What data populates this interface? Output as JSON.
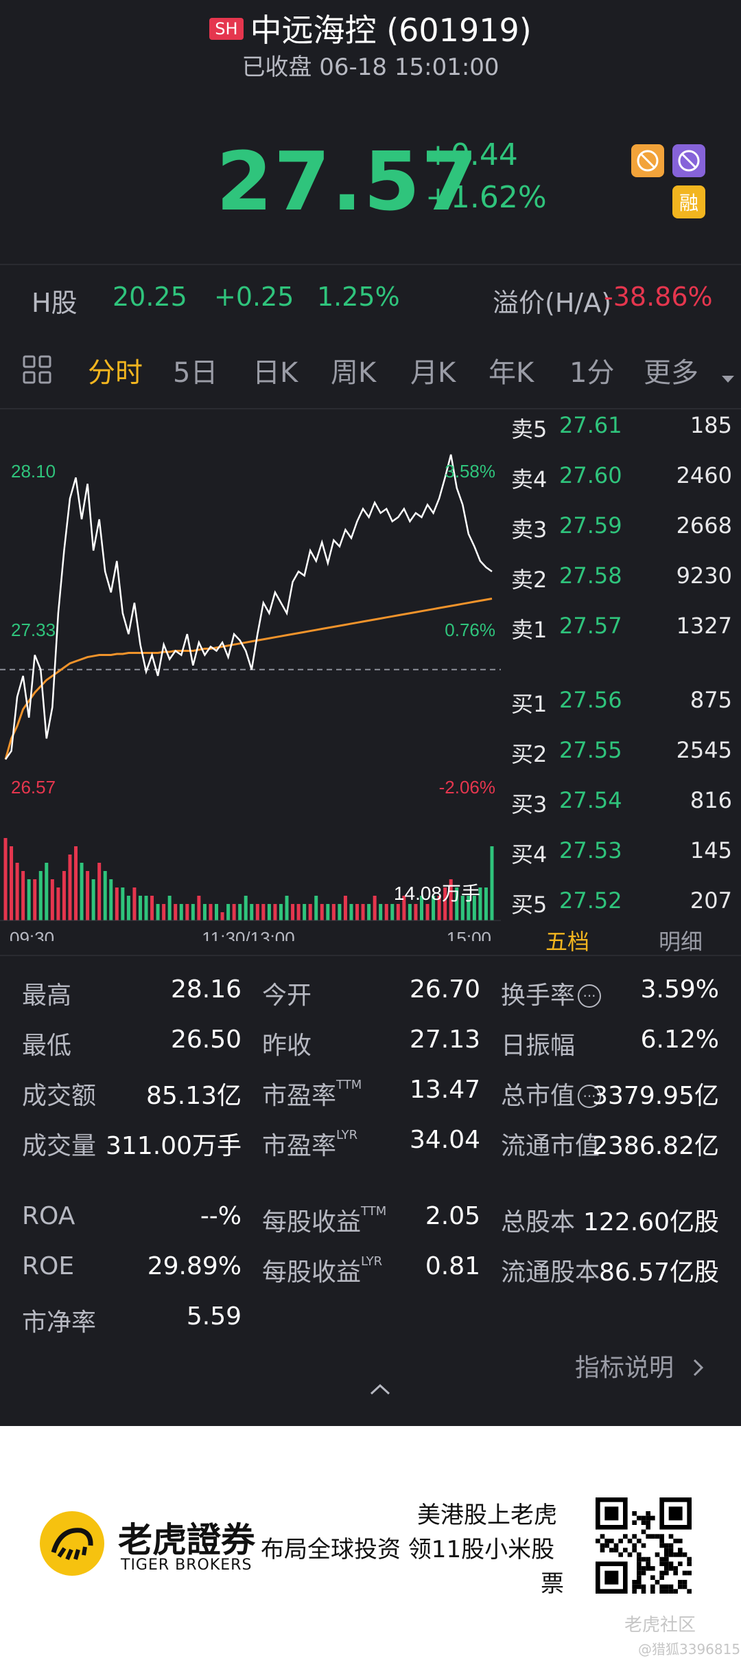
{
  "header": {
    "market_badge": "SH",
    "stock_name": "中远海控 (601919)",
    "status": "已收盘 06-18 15:01:00",
    "price": "27.57",
    "change": "+0.44",
    "change_pct": "+1.62%",
    "tags": [
      "no-short-icon",
      "no-buy-icon",
      "融"
    ]
  },
  "hshare": {
    "label": "H股",
    "price": "20.25",
    "change": "+0.25",
    "pct": "1.25%",
    "premium_label": "溢价(H/A)",
    "premium": "-38.86%"
  },
  "tabs": [
    "分时",
    "5日",
    "日K",
    "周K",
    "月K",
    "年K",
    "1分",
    "更多"
  ],
  "active_tab": "分时",
  "chart_data": {
    "type": "line",
    "price_axis": {
      "high": "28.10",
      "mid": "27.33",
      "low": "26.57"
    },
    "pct_axis": {
      "high": "3.58%",
      "mid": "0.76%",
      "low": "-2.06%"
    },
    "time_labels": [
      "09:30",
      "11:30/13:00",
      "15:00"
    ],
    "prev_close": 27.13,
    "volume_label": "14.08万手",
    "price_series": [
      26.7,
      26.74,
      27.0,
      27.1,
      26.9,
      27.2,
      27.13,
      26.8,
      26.95,
      27.4,
      27.7,
      27.95,
      28.05,
      27.85,
      28.02,
      27.7,
      27.85,
      27.6,
      27.5,
      27.65,
      27.4,
      27.3,
      27.45,
      27.25,
      27.12,
      27.2,
      27.1,
      27.25,
      27.18,
      27.22,
      27.2,
      27.3,
      27.15,
      27.26,
      27.2,
      27.24,
      27.22,
      27.26,
      27.19,
      27.3,
      27.27,
      27.22,
      27.13,
      27.3,
      27.45,
      27.4,
      27.5,
      27.45,
      27.4,
      27.55,
      27.6,
      27.58,
      27.7,
      27.65,
      27.74,
      27.64,
      27.75,
      27.72,
      27.8,
      27.76,
      27.84,
      27.9,
      27.86,
      27.93,
      27.88,
      27.9,
      27.84,
      27.86,
      27.9,
      27.84,
      27.88,
      27.86,
      27.92,
      27.88,
      27.95,
      28.05,
      28.16,
      28.0,
      27.92,
      27.78,
      27.72,
      27.65,
      27.62,
      27.6
    ],
    "avg_series": [
      26.7,
      26.8,
      26.86,
      26.94,
      26.98,
      27.02,
      27.05,
      27.08,
      27.1,
      27.12,
      27.14,
      27.16,
      27.17,
      27.18,
      27.19,
      27.195,
      27.2,
      27.2,
      27.2,
      27.205,
      27.205,
      27.21,
      27.21,
      27.21,
      27.21,
      27.21,
      27.21,
      27.215,
      27.215,
      27.22,
      27.22,
      27.22,
      27.22,
      27.225,
      27.23,
      27.23,
      27.235,
      27.24,
      27.245,
      27.25,
      27.255,
      27.26,
      27.265,
      27.27,
      27.275,
      27.28,
      27.285,
      27.29,
      27.295,
      27.3,
      27.305,
      27.31,
      27.315,
      27.32,
      27.325,
      27.33,
      27.335,
      27.34,
      27.345,
      27.35,
      27.355,
      27.36,
      27.365,
      27.37,
      27.375,
      27.38,
      27.385,
      27.39,
      27.395,
      27.4,
      27.405,
      27.41,
      27.415,
      27.42,
      27.425,
      27.43,
      27.435,
      27.44,
      27.445,
      27.45,
      27.455,
      27.46,
      27.465,
      27.47
    ],
    "volume_series": [
      10,
      9,
      7,
      6,
      5,
      5,
      6,
      7,
      5,
      4,
      6,
      8,
      9,
      7,
      6,
      5,
      7,
      6,
      5,
      4,
      4,
      3,
      4,
      3,
      3,
      3,
      2,
      2,
      3,
      2,
      2,
      2,
      2,
      3,
      2,
      2,
      2,
      1,
      2,
      2,
      2,
      3,
      2,
      2,
      2,
      2,
      2,
      2,
      3,
      2,
      2,
      2,
      2,
      3,
      2,
      2,
      2,
      2,
      3,
      2,
      2,
      2,
      2,
      3,
      2,
      2,
      2,
      2,
      3,
      2,
      2,
      3,
      2,
      3,
      3,
      4,
      5,
      4,
      3,
      3,
      3,
      4,
      4,
      9
    ]
  },
  "order_book": {
    "asks": [
      {
        "label": "卖5",
        "price": "27.61",
        "vol": "185"
      },
      {
        "label": "卖4",
        "price": "27.60",
        "vol": "2460"
      },
      {
        "label": "卖3",
        "price": "27.59",
        "vol": "2668"
      },
      {
        "label": "卖2",
        "price": "27.58",
        "vol": "9230"
      },
      {
        "label": "卖1",
        "price": "27.57",
        "vol": "1327"
      }
    ],
    "bids": [
      {
        "label": "买1",
        "price": "27.56",
        "vol": "875"
      },
      {
        "label": "买2",
        "price": "27.55",
        "vol": "2545"
      },
      {
        "label": "买3",
        "price": "27.54",
        "vol": "816"
      },
      {
        "label": "买4",
        "price": "27.53",
        "vol": "145"
      },
      {
        "label": "买5",
        "price": "27.52",
        "vol": "207"
      }
    ],
    "tab_five": "五档",
    "tab_detail": "明细"
  },
  "stats": {
    "col1": [
      {
        "k": "最高",
        "v": "28.16"
      },
      {
        "k": "最低",
        "v": "26.50"
      },
      {
        "k": "成交额",
        "v": "85.13亿"
      },
      {
        "k": "成交量",
        "v": "311.00万手"
      }
    ],
    "col2": [
      {
        "k": "今开",
        "v": "26.70"
      },
      {
        "k": "昨收",
        "v": "27.13"
      },
      {
        "k": "市盈率",
        "sup": "TTM",
        "v": "13.47"
      },
      {
        "k": "市盈率",
        "sup": "LYR",
        "v": "34.04"
      }
    ],
    "col3": [
      {
        "k": "换手率",
        "v": "3.59%"
      },
      {
        "k": "日振幅",
        "v": "6.12%"
      },
      {
        "k": "总市值",
        "v": "3379.95亿"
      },
      {
        "k": "流通市值",
        "v": "2386.82亿"
      }
    ],
    "col1b": [
      {
        "k": "ROA",
        "v": "--%"
      },
      {
        "k": "ROE",
        "v": "29.89%"
      },
      {
        "k": "市净率",
        "v": "5.59"
      }
    ],
    "col2b": [
      {
        "k": "每股收益",
        "sup": "TTM",
        "v": "2.05"
      },
      {
        "k": "每股收益",
        "sup": "LYR",
        "v": "0.81"
      }
    ],
    "col3b": [
      {
        "k": "总股本",
        "v": "122.60亿股"
      },
      {
        "k": "流通股本",
        "v": "86.57亿股"
      }
    ],
    "indicator_link": "指标说明"
  },
  "footer": {
    "brand_cn": "老虎證券",
    "brand_en": "TIGER BROKERS",
    "slogan1": "美港股上老虎",
    "slogan2": "布局全球投资 领11股小米股",
    "slogan3": "票",
    "watermark1": "老虎社区",
    "watermark2": "@猎狐3396815"
  }
}
